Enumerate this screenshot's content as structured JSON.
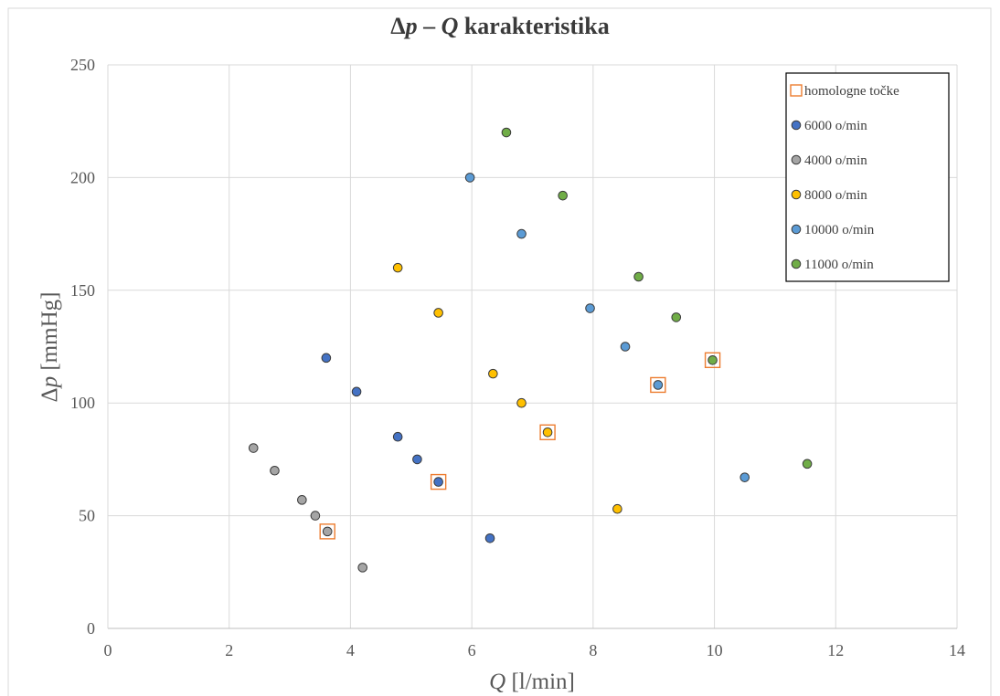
{
  "chart_data": {
    "type": "scatter",
    "title": {
      "delta": "Δ",
      "p": "p",
      "dash": " – ",
      "q": "Q",
      "rest": " karakteristika"
    },
    "xlabel": {
      "var": "Q",
      "unit": " [l/min]"
    },
    "ylabel": {
      "delta": "Δ",
      "var": "p",
      "unit": " [mmHg]"
    },
    "xlim": [
      0,
      14
    ],
    "ylim": [
      0,
      250
    ],
    "xticks": [
      0,
      2,
      4,
      6,
      8,
      10,
      12,
      14
    ],
    "yticks": [
      0,
      50,
      100,
      150,
      200,
      250
    ],
    "grid": true,
    "legend_position": "top-right",
    "series": [
      {
        "name": "homologne točke",
        "marker": "open-square",
        "color": "#ED7D31",
        "points": [
          [
            3.62,
            43
          ],
          [
            5.45,
            65
          ],
          [
            7.25,
            87
          ],
          [
            9.07,
            108
          ],
          [
            9.97,
            119
          ]
        ]
      },
      {
        "name": "6000 o/min",
        "marker": "circle",
        "color": "#4472C4",
        "points": [
          [
            3.6,
            120
          ],
          [
            4.1,
            105
          ],
          [
            4.78,
            85
          ],
          [
            5.1,
            75
          ],
          [
            5.45,
            65
          ],
          [
            6.3,
            40
          ]
        ]
      },
      {
        "name": "4000 o/min",
        "marker": "circle",
        "color": "#A5A5A5",
        "points": [
          [
            2.4,
            80
          ],
          [
            2.75,
            70
          ],
          [
            3.2,
            57
          ],
          [
            3.42,
            50
          ],
          [
            3.62,
            43
          ],
          [
            4.2,
            27
          ]
        ]
      },
      {
        "name": "8000 o/min",
        "marker": "circle",
        "color": "#FFC000",
        "points": [
          [
            4.78,
            160
          ],
          [
            5.45,
            140
          ],
          [
            6.35,
            113
          ],
          [
            6.82,
            100
          ],
          [
            7.25,
            87
          ],
          [
            8.4,
            53
          ]
        ]
      },
      {
        "name": "10000 o/min",
        "marker": "circle",
        "color": "#5B9BD5",
        "points": [
          [
            5.97,
            200
          ],
          [
            6.82,
            175
          ],
          [
            7.95,
            142
          ],
          [
            8.53,
            125
          ],
          [
            9.07,
            108
          ],
          [
            10.5,
            67
          ]
        ]
      },
      {
        "name": "11000 o/min",
        "marker": "circle",
        "color": "#70AD47",
        "points": [
          [
            6.57,
            220
          ],
          [
            7.5,
            192
          ],
          [
            8.75,
            156
          ],
          [
            9.37,
            138
          ],
          [
            9.97,
            119
          ],
          [
            11.53,
            73
          ]
        ]
      }
    ]
  }
}
